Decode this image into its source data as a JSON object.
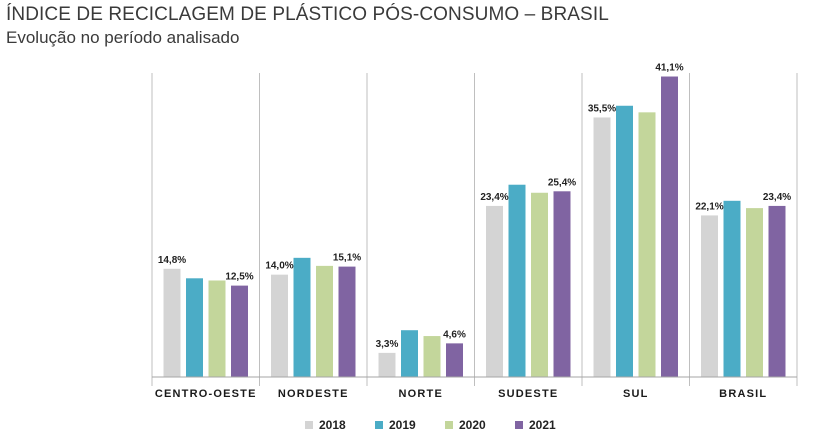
{
  "title": "ÍNDICE DE RECICLAGEM DE PLÁSTICO PÓS-CONSUMO – BRASIL",
  "subtitle": "Evolução no período analisado",
  "chart_data": {
    "type": "bar",
    "categories": [
      "CENTRO-OESTE",
      "NORDESTE",
      "NORTE",
      "SUDESTE",
      "SUL",
      "BRASIL"
    ],
    "series": [
      {
        "name": "2018",
        "color": "#d4d4d4",
        "values": [
          14.8,
          14.0,
          3.3,
          23.4,
          35.5,
          22.1
        ]
      },
      {
        "name": "2019",
        "color": "#4bacc6",
        "values": [
          13.5,
          16.3,
          6.4,
          26.3,
          37.1,
          24.1
        ]
      },
      {
        "name": "2020",
        "color": "#c3d69b",
        "values": [
          13.2,
          15.2,
          5.6,
          25.2,
          36.2,
          23.1
        ]
      },
      {
        "name": "2021",
        "color": "#8064a2",
        "values": [
          12.5,
          15.1,
          4.6,
          25.4,
          41.1,
          23.4
        ]
      }
    ],
    "data_labels": [
      [
        "14,8%",
        "",
        "",
        "12,5%"
      ],
      [
        "14,0%",
        "",
        "",
        "15,1%"
      ],
      [
        "3,3%",
        "",
        "",
        "4,6%"
      ],
      [
        "23,4%",
        "",
        "",
        "25,4%"
      ],
      [
        "35,5%",
        "",
        "",
        "41,1%"
      ],
      [
        "22,1%",
        "",
        "",
        "23,4%"
      ]
    ],
    "ylim": [
      0,
      45
    ],
    "xlabel": "",
    "ylabel": "",
    "grid": false,
    "legend_position": "bottom-center"
  }
}
